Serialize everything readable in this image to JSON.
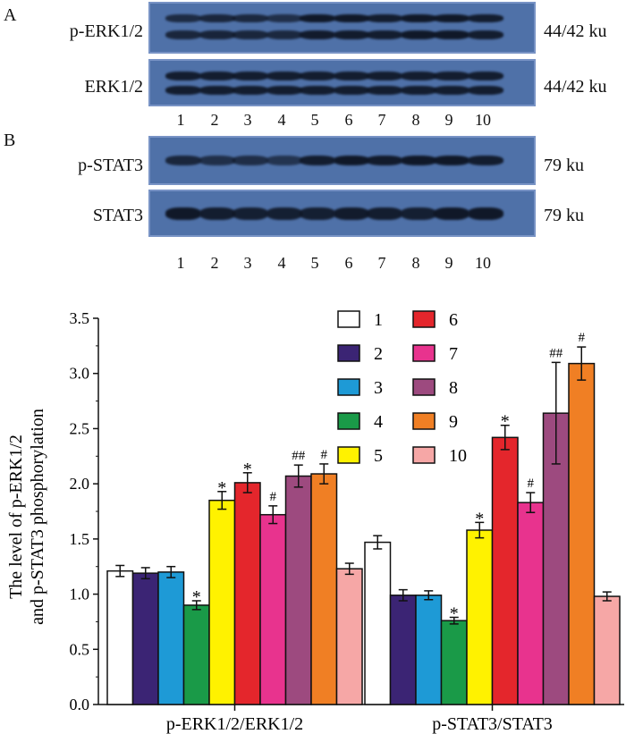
{
  "blots": {
    "panel_a": "A",
    "panel_b": "B",
    "rows": [
      {
        "label": "p-ERK1/2",
        "size": "44/42 ku"
      },
      {
        "label": "ERK1/2",
        "size": "44/42 ku"
      },
      {
        "label": "p-STAT3",
        "size": "79 ku"
      },
      {
        "label": "STAT3",
        "size": "79 ku"
      }
    ],
    "lanes": [
      "1",
      "2",
      "3",
      "4",
      "5",
      "6",
      "7",
      "8",
      "9",
      "10"
    ],
    "colors": {
      "membrane": "#4f71a8",
      "band": "#0d1422"
    }
  },
  "chart_data": {
    "type": "bar",
    "ylabel_line1": "The level of p-ERK1/2",
    "ylabel_line2": "and p-STAT3 phosphorylation",
    "ylim": [
      0,
      3.5
    ],
    "yticks": [
      "0.0",
      "0.5",
      "1.0",
      "1.5",
      "2.0",
      "2.5",
      "3.0",
      "3.5"
    ],
    "categories": [
      "p-ERK1/2/ERK1/2",
      "p-STAT3/STAT3"
    ],
    "series": [
      {
        "name": "1",
        "color": "#ffffff",
        "values": [
          1.21,
          1.47
        ],
        "errors": [
          0.05,
          0.06
        ],
        "marks": [
          "",
          ""
        ]
      },
      {
        "name": "2",
        "color": "#3b2474",
        "values": [
          1.19,
          0.99
        ],
        "errors": [
          0.05,
          0.05
        ],
        "marks": [
          "",
          ""
        ]
      },
      {
        "name": "3",
        "color": "#1e9ad6",
        "values": [
          1.2,
          0.99
        ],
        "errors": [
          0.05,
          0.04
        ],
        "marks": [
          "",
          ""
        ]
      },
      {
        "name": "4",
        "color": "#1a9a48",
        "values": [
          0.9,
          0.76
        ],
        "errors": [
          0.04,
          0.03
        ],
        "marks": [
          "*",
          "*"
        ]
      },
      {
        "name": "5",
        "color": "#fff200",
        "values": [
          1.85,
          1.58
        ],
        "errors": [
          0.08,
          0.07
        ],
        "marks": [
          "*",
          "*"
        ]
      },
      {
        "name": "6",
        "color": "#e4262c",
        "values": [
          2.01,
          2.42
        ],
        "errors": [
          0.09,
          0.11
        ],
        "marks": [
          "*",
          "*"
        ]
      },
      {
        "name": "7",
        "color": "#e8338e",
        "values": [
          1.72,
          1.83
        ],
        "errors": [
          0.08,
          0.09
        ],
        "marks": [
          "#",
          "#"
        ]
      },
      {
        "name": "8",
        "color": "#9d4a7f",
        "values": [
          2.07,
          2.64
        ],
        "errors": [
          0.1,
          0.46
        ],
        "marks": [
          "##",
          "##"
        ]
      },
      {
        "name": "9",
        "color": "#f07f24",
        "values": [
          2.09,
          3.09
        ],
        "errors": [
          0.09,
          0.15
        ],
        "marks": [
          "#",
          "#"
        ]
      },
      {
        "name": "10",
        "color": "#f6a7a6",
        "values": [
          1.23,
          0.98
        ],
        "errors": [
          0.05,
          0.04
        ],
        "marks": [
          "",
          ""
        ]
      }
    ],
    "legend_position": "top-right"
  }
}
